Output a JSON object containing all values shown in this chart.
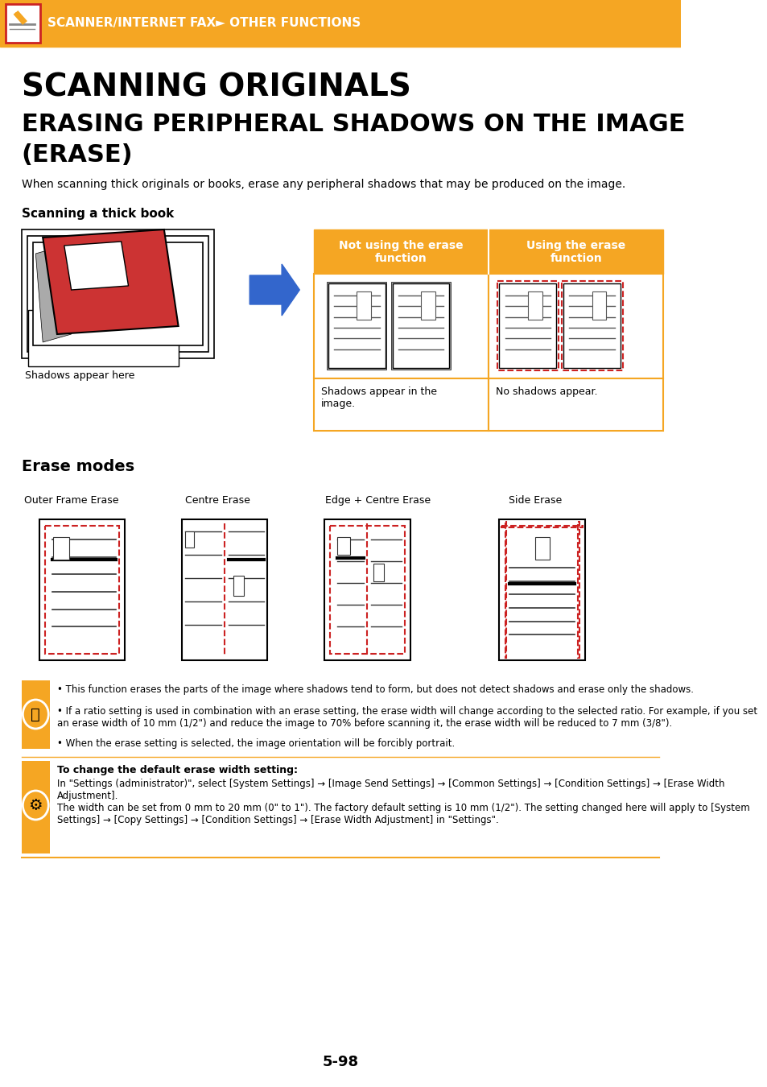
{
  "header_bg": "#F5A623",
  "header_text": "SCANNER/INTERNET FAX► OTHER FUNCTIONS",
  "header_text_color": "#FFFFFF",
  "title1": "SCANNING ORIGINALS",
  "title2": "ERASING PERIPHERAL SHADOWS ON THE IMAGE (ERASE)",
  "body_text": "When scanning thick originals or books, erase any peripheral shadows that may be produced on the image.",
  "section1_label": "Scanning a thick book",
  "shadows_label": "Shadows appear here",
  "table_header1": "Not using the erase\nfunction",
  "table_header2": "Using the erase\nfunction",
  "table_cell1": "Shadows appear in the\nimage.",
  "table_cell2": "No shadows appear.",
  "table_header_bg": "#F5A623",
  "table_header_text": "#FFFFFF",
  "table_border": "#F5A623",
  "section2_label": "Erase modes",
  "erase_modes": [
    "Outer Frame Erase",
    "Centre Erase",
    "Edge + Centre Erase",
    "Side Erase"
  ],
  "note_bg": "#FFF5E6",
  "note_border": "#F5A623",
  "note1": "This function erases the parts of the image where shadows tend to form, but does not detect shadows and erase only the shadows.",
  "note2": "If a ratio setting is used in combination with an erase setting, the erase width will change according to the selected ratio. For example, if you set an erase width of 10 mm (1/2\") and reduce the image to 70% before scanning it, the erase width will be reduced to 7 mm (3/8\").",
  "note3": "When the erase setting is selected, the image orientation will be forcibly portrait.",
  "bold_note_title": "To change the default erase width setting:",
  "bold_note_text": "In \"Settings (administrator)\", select [System Settings] → [Image Send Settings] → [Common Settings] → [Condition Settings] → [Erase Width Adjustment].\nThe width can be set from 0 mm to 20 mm (0\" to 1\"). The factory default setting is 10 mm (1/2\"). The setting changed here will apply to [System Settings] → [Copy Settings] → [Condition Settings] → [Erase Width Adjustment] in \"Settings\".",
  "page_number": "5-98",
  "orange": "#F5A623",
  "red": "#CC2222",
  "dark_red": "#CC3333"
}
